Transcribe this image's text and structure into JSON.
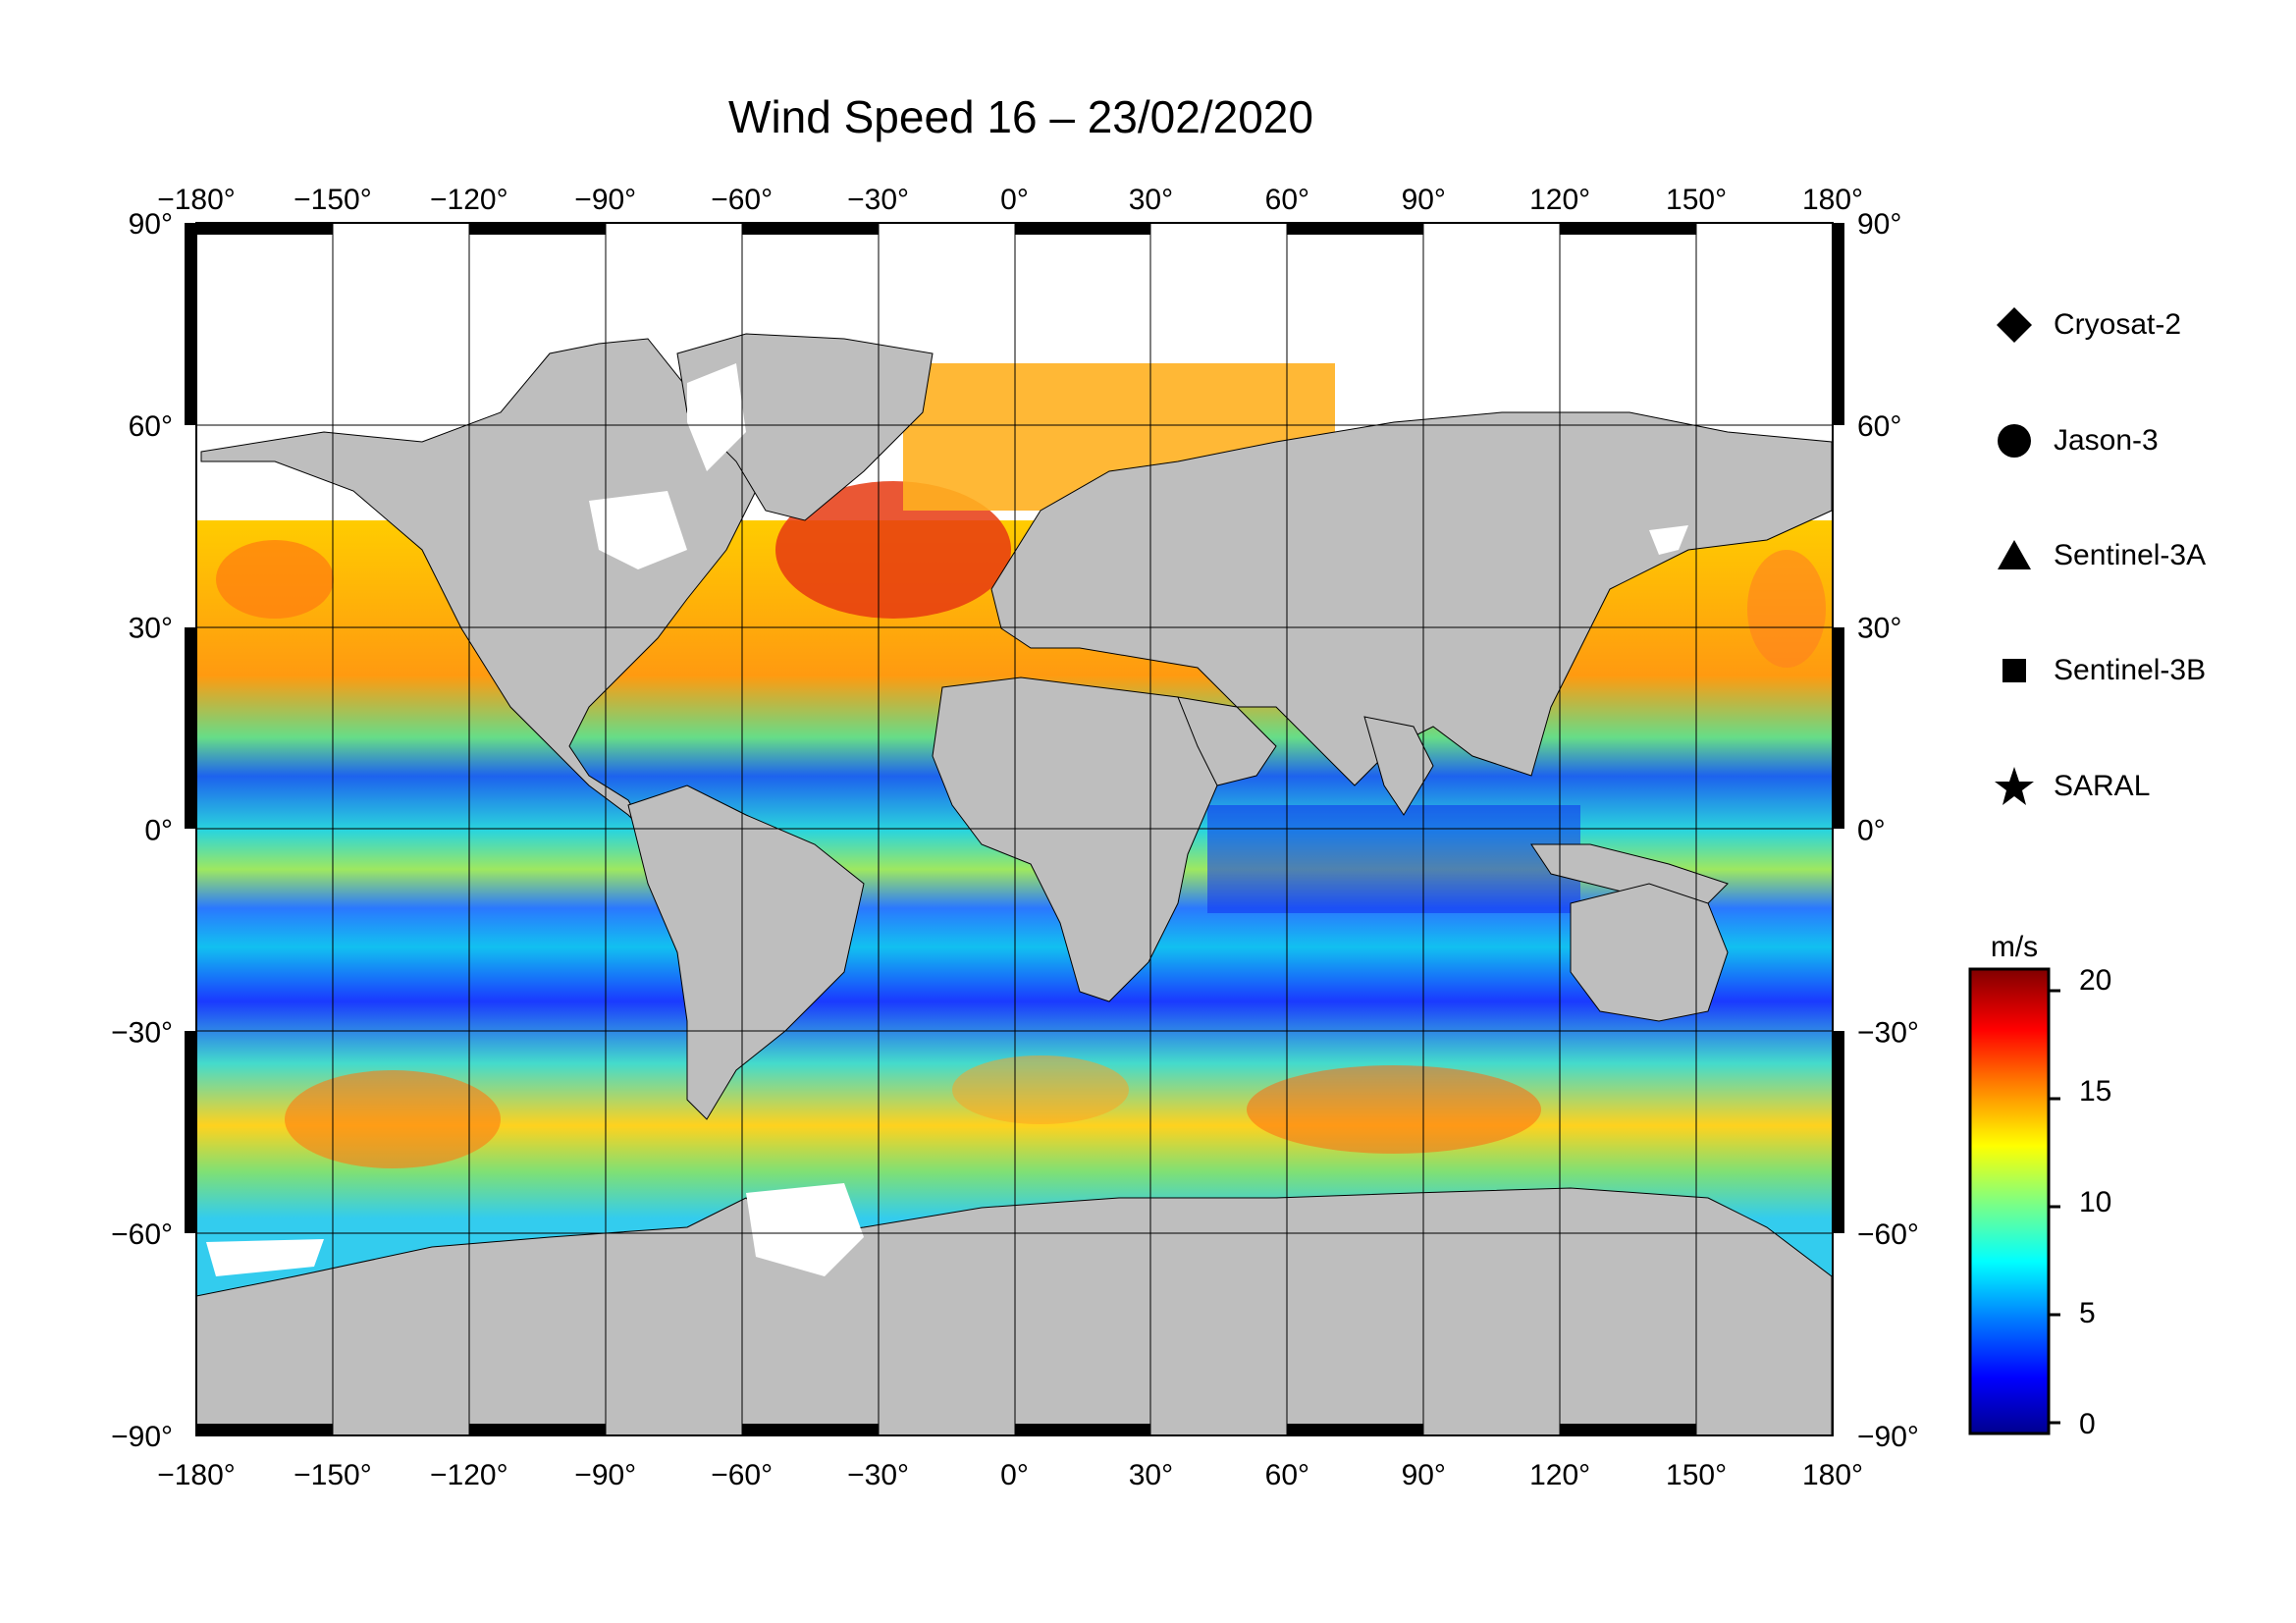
{
  "title": "Wind Speed 16 – 23/02/2020",
  "axes": {
    "lon_ticks": [
      -180,
      -150,
      -120,
      -90,
      -60,
      -30,
      0,
      30,
      60,
      90,
      120,
      150,
      180
    ],
    "lat_ticks": [
      90,
      60,
      30,
      0,
      -30,
      -60,
      -90
    ],
    "degree_symbol": "°"
  },
  "legend": {
    "items": [
      {
        "label": "Cryosat-2",
        "symbol": "diamond"
      },
      {
        "label": "Jason-3",
        "symbol": "circle"
      },
      {
        "label": "Sentinel-3A",
        "symbol": "triangle"
      },
      {
        "label": "Sentinel-3B",
        "symbol": "square"
      },
      {
        "label": "SARAL",
        "symbol": "star"
      }
    ]
  },
  "colorbar": {
    "unit": "m/s",
    "ticks": [
      "20",
      "15",
      "10",
      "5",
      "0"
    ],
    "tick_values": [
      20,
      15,
      10,
      5,
      0
    ],
    "range": [
      -0.5,
      21
    ],
    "colors": [
      "#00008f",
      "#0000ff",
      "#0080ff",
      "#00ffff",
      "#80ff80",
      "#ffff00",
      "#ff8000",
      "#ff0000",
      "#800000"
    ]
  },
  "colors": {
    "land": "#bebebe",
    "ice": "#ffffff",
    "frame": "#000000",
    "grid": "#000000"
  }
}
